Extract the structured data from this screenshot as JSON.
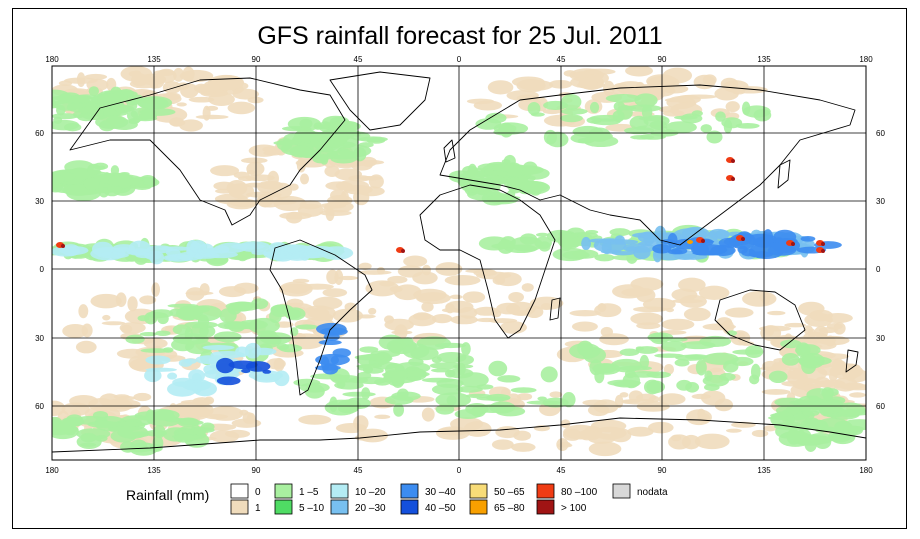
{
  "title": "GFS rainfall forecast for 25 Jul. 2011",
  "map": {
    "lon_labels": [
      "180",
      "135",
      "90",
      "45",
      "0",
      "45",
      "90",
      "135",
      "180"
    ],
    "lat_labels": [
      "60",
      "30",
      "0",
      "30",
      "60"
    ],
    "colors": {
      "ocean": "#ffffff",
      "land_dry": "#ffffff",
      "coastline": "#000000",
      "grid": "#000000"
    }
  },
  "legend": {
    "title": "Rainfall (mm)",
    "items": [
      {
        "label": "0",
        "color": "#ffffff"
      },
      {
        "label": "1",
        "color": "#f0dcbc"
      },
      {
        "label": "1 –5",
        "color": "#a9f0a0"
      },
      {
        "label": "5 –10",
        "color": "#4fdc64"
      },
      {
        "label": "10 –20",
        "color": "#b4ecf4"
      },
      {
        "label": "20 –30",
        "color": "#78c0f0"
      },
      {
        "label": "30 –40",
        "color": "#3c8cf0"
      },
      {
        "label": "40 –50",
        "color": "#1450dc"
      },
      {
        "label": "50 –65",
        "color": "#f8dc78"
      },
      {
        "label": "65 –80",
        "color": "#f8a000"
      },
      {
        "label": "80 –100",
        "color": "#f03c14"
      },
      {
        "label": "> 100",
        "color": "#a01414"
      },
      {
        "label": "nodata",
        "color": "#d8d8d8"
      }
    ]
  }
}
